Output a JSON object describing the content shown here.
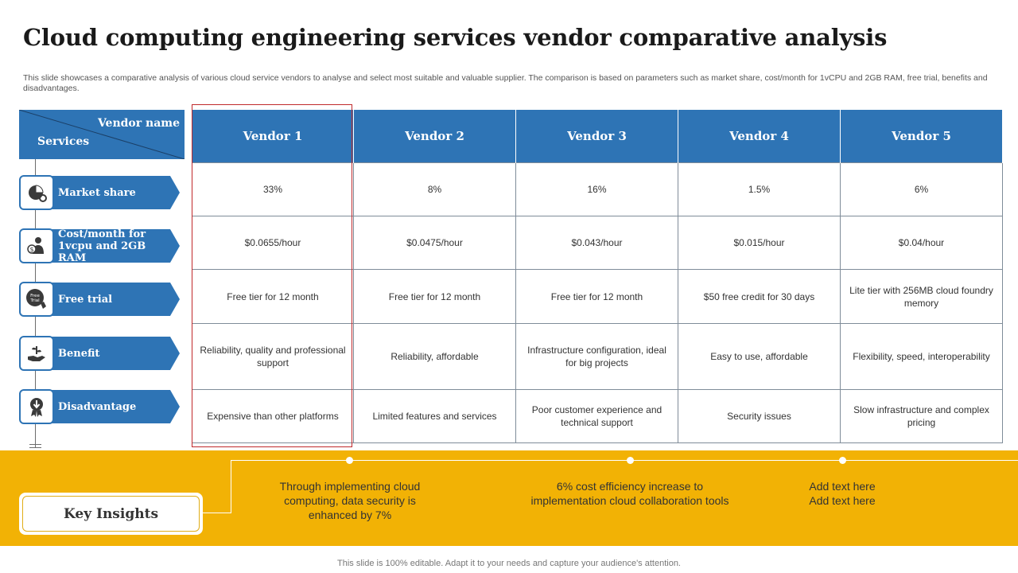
{
  "title": "Cloud computing engineering services vendor comparative analysis",
  "subtitle": "This slide showcases a comparative analysis of various cloud service vendors to analyse and select most suitable and valuable supplier. The comparison is based on parameters such as market share, cost/month for 1vCPU and 2GB RAM,  free trial, benefits and disadvantages.",
  "header": {
    "vendor_name": "Vendor name",
    "services": "Services"
  },
  "vendors": [
    "Vendor 1",
    "Vendor 2",
    "Vendor 3",
    "Vendor 4",
    "Vendor 5"
  ],
  "rows": [
    {
      "label": "Market share",
      "icon": "pie-chart-gear-icon",
      "cells": [
        "33%",
        "8%",
        "16%",
        "1.5%",
        "6%"
      ]
    },
    {
      "label": "Cost/month for 1vcpu and 2GB RAM",
      "icon": "person-dollar-icon",
      "cells": [
        "$0.0655/hour",
        "$0.0475/hour",
        "$0.043/hour",
        "$0.015/hour",
        "$0.04/hour"
      ]
    },
    {
      "label": "Free trial",
      "icon": "free-trial-icon",
      "icon_text": "Free Trial",
      "cells": [
        "Free tier for 12 month",
        "Free tier for 12 month",
        "Free tier for 12 month",
        "$50 free credit for 30 days",
        "Lite tier with 256MB cloud foundry memory"
      ]
    },
    {
      "label": "Benefit",
      "icon": "hand-growth-icon",
      "cells": [
        "Reliability, quality and professional support",
        "Reliability, affordable",
        "Infrastructure configuration, ideal for big projects",
        "Easy to use, affordable",
        "Flexibility, speed, interoperability"
      ]
    },
    {
      "label": "Disadvantage",
      "icon": "badge-down-icon",
      "cells": [
        "Expensive than other platforms",
        "Limited features and services",
        "Poor customer experience and technical support",
        "Security issues",
        "Slow infrastructure and complex pricing"
      ]
    }
  ],
  "key_insights": {
    "label": "Key Insights",
    "items": [
      "Through implementing cloud computing, data security is enhanced by 7%",
      "6% cost efficiency increase to implementation cloud collaboration tools",
      "Add text here Add text here"
    ]
  },
  "footer": "This slide is 100% editable. Adapt it to your needs and capture your audience's attention.",
  "colors": {
    "primary_blue": "#2e74b5",
    "accent_yellow": "#f2b205",
    "highlight_red": "#c0292b"
  }
}
